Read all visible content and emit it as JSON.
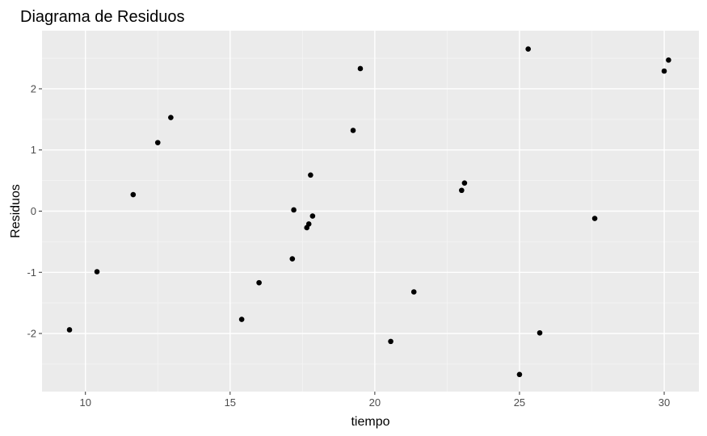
{
  "chart_data": {
    "type": "scatter",
    "title": "Diagrama de Residuos",
    "xlabel": "tiempo",
    "ylabel": "Residuos",
    "xlim": [
      8.5,
      31.2
    ],
    "ylim": [
      -2.95,
      2.95
    ],
    "x_ticks": [
      10,
      15,
      20,
      25,
      30
    ],
    "y_ticks": [
      -2,
      -1,
      0,
      1,
      2
    ],
    "x_tick_labels": [
      "10",
      "15",
      "20",
      "25",
      "30"
    ],
    "y_tick_labels": [
      "-2",
      "-1",
      "0",
      "1",
      "2"
    ],
    "grid": true,
    "colors": {
      "panel_background": "#ebebeb",
      "grid_major": "#ffffff",
      "grid_minor": "#f5f5f5",
      "point": "#000000",
      "tick": "#333333"
    },
    "points": [
      {
        "x": 9.45,
        "y": -1.94
      },
      {
        "x": 10.4,
        "y": -0.99
      },
      {
        "x": 11.65,
        "y": 0.27
      },
      {
        "x": 12.5,
        "y": 1.12
      },
      {
        "x": 12.95,
        "y": 1.53
      },
      {
        "x": 15.4,
        "y": -1.77
      },
      {
        "x": 16.0,
        "y": -1.17
      },
      {
        "x": 17.15,
        "y": -0.78
      },
      {
        "x": 17.2,
        "y": 0.02
      },
      {
        "x": 17.65,
        "y": -0.27
      },
      {
        "x": 17.72,
        "y": -0.21
      },
      {
        "x": 17.78,
        "y": 0.59
      },
      {
        "x": 17.85,
        "y": -0.08
      },
      {
        "x": 19.25,
        "y": 1.32
      },
      {
        "x": 19.5,
        "y": 2.33
      },
      {
        "x": 20.55,
        "y": -2.13
      },
      {
        "x": 21.35,
        "y": -1.32
      },
      {
        "x": 23.0,
        "y": 0.34
      },
      {
        "x": 23.1,
        "y": 0.46
      },
      {
        "x": 25.0,
        "y": -2.67
      },
      {
        "x": 25.3,
        "y": 2.65
      },
      {
        "x": 25.7,
        "y": -1.99
      },
      {
        "x": 27.6,
        "y": -0.12
      },
      {
        "x": 30.0,
        "y": 2.29
      },
      {
        "x": 30.15,
        "y": 2.47
      }
    ]
  }
}
